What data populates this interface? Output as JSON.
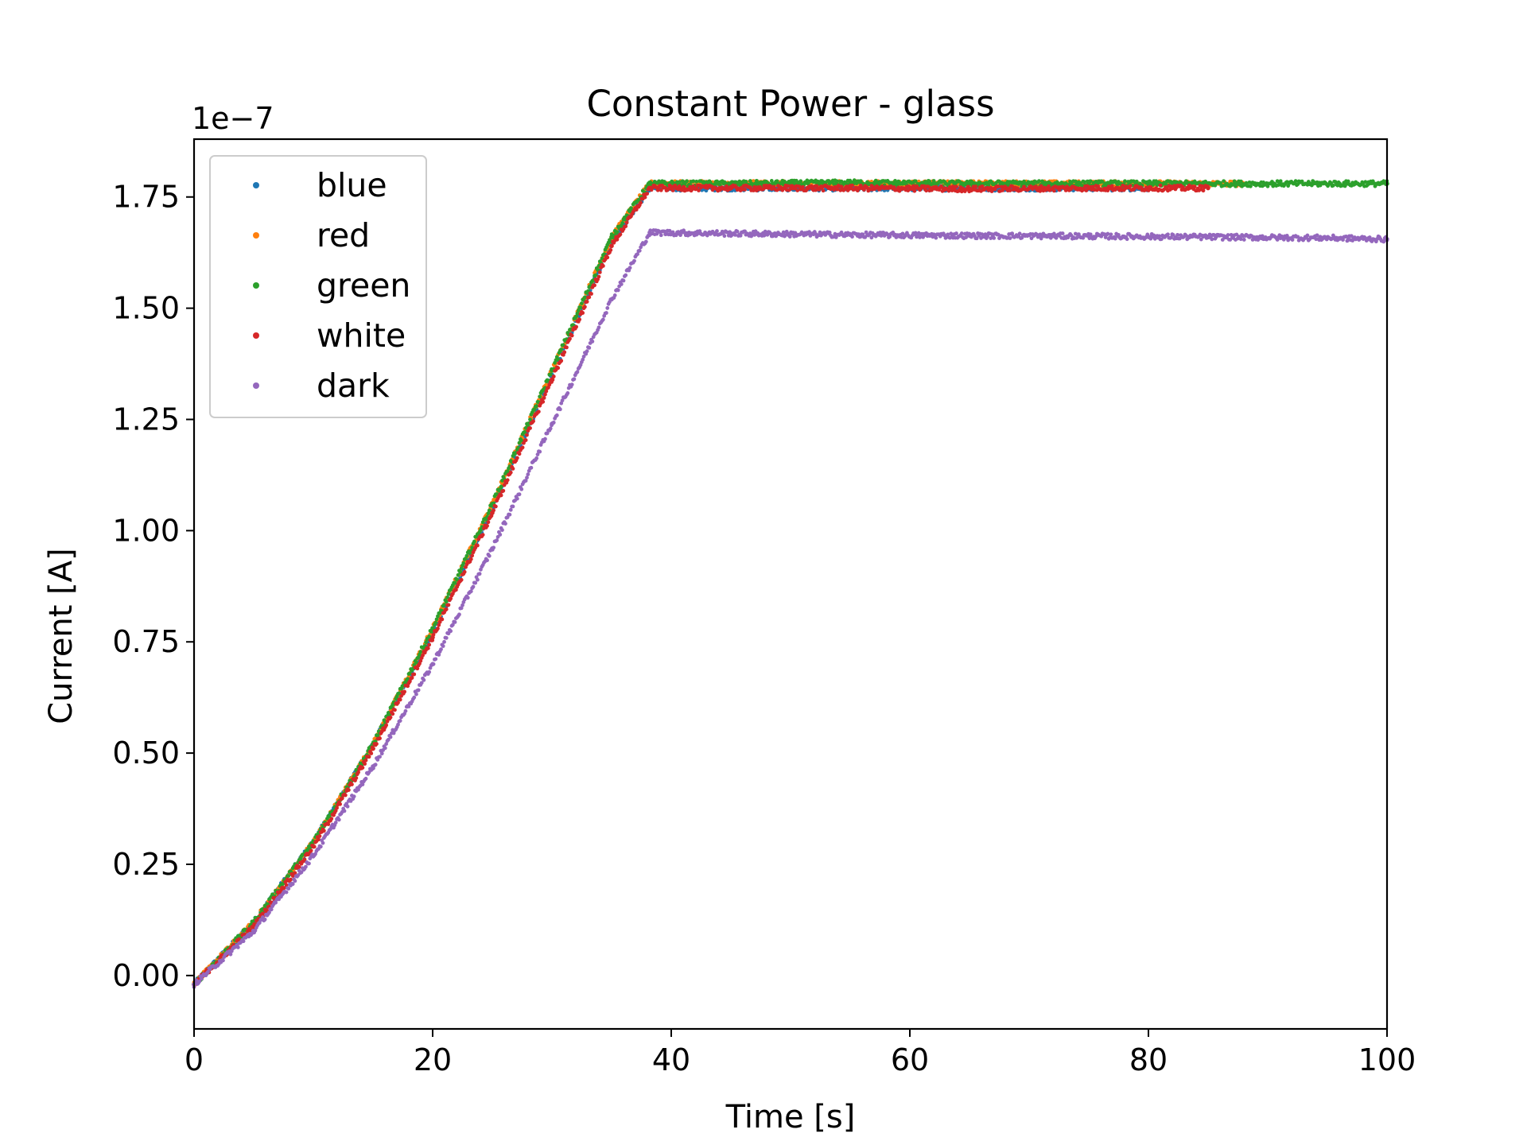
{
  "chart_data": {
    "type": "scatter",
    "title": "Constant Power - glass",
    "xlabel": "Time [s]",
    "ylabel": "Current [A]",
    "y_offset_text": "1e−7",
    "y_scale_exponent": -7,
    "xlim": [
      0,
      100
    ],
    "ylim": [
      -0.12,
      1.88
    ],
    "x_ticks": [
      0,
      20,
      40,
      60,
      80,
      100
    ],
    "x_tick_labels": [
      "0",
      "20",
      "40",
      "60",
      "80",
      "100"
    ],
    "y_ticks": [
      0.0,
      0.25,
      0.5,
      0.75,
      1.0,
      1.25,
      1.5,
      1.75
    ],
    "y_tick_labels": [
      "0.00",
      "0.25",
      "0.50",
      "0.75",
      "1.00",
      "1.25",
      "1.50",
      "1.75"
    ],
    "grid": false,
    "legend_position": "upper-left",
    "series": [
      {
        "name": "blue",
        "color": "#1f77b4",
        "x": [
          0,
          5,
          10,
          15,
          20,
          25,
          30,
          35,
          38.2,
          45,
          55,
          65,
          75,
          80
        ],
        "y": [
          -0.02,
          0.12,
          0.3,
          0.52,
          0.77,
          1.05,
          1.35,
          1.65,
          1.77,
          1.77,
          1.77,
          1.77,
          1.77,
          1.77
        ]
      },
      {
        "name": "red",
        "color": "#ff7f0e",
        "x": [
          0,
          5,
          10,
          15,
          20,
          25,
          30,
          35,
          38.2,
          45,
          55,
          65,
          75,
          88
        ],
        "y": [
          -0.02,
          0.12,
          0.3,
          0.52,
          0.78,
          1.06,
          1.36,
          1.66,
          1.78,
          1.78,
          1.78,
          1.78,
          1.78,
          1.78
        ]
      },
      {
        "name": "green",
        "color": "#2ca02c",
        "x": [
          0,
          5,
          10,
          15,
          20,
          25,
          30,
          35,
          38.2,
          45,
          55,
          65,
          75,
          85,
          100
        ],
        "y": [
          -0.02,
          0.12,
          0.3,
          0.52,
          0.78,
          1.06,
          1.36,
          1.66,
          1.78,
          1.78,
          1.782,
          1.78,
          1.78,
          1.78,
          1.78
        ]
      },
      {
        "name": "white",
        "color": "#d62728",
        "x": [
          0,
          5,
          10,
          15,
          20,
          25,
          30,
          35,
          38.2,
          45,
          55,
          65,
          75,
          85
        ],
        "y": [
          -0.02,
          0.11,
          0.29,
          0.51,
          0.76,
          1.04,
          1.34,
          1.64,
          1.77,
          1.77,
          1.77,
          1.768,
          1.77,
          1.77
        ]
      },
      {
        "name": "dark",
        "color": "#9467bd",
        "x": [
          0,
          5,
          10,
          15,
          20,
          25,
          30,
          35,
          38.2,
          45,
          55,
          65,
          75,
          85,
          95,
          100
        ],
        "y": [
          -0.02,
          0.1,
          0.27,
          0.47,
          0.7,
          0.96,
          1.24,
          1.52,
          1.67,
          1.668,
          1.665,
          1.663,
          1.662,
          1.66,
          1.658,
          1.655
        ]
      }
    ]
  }
}
